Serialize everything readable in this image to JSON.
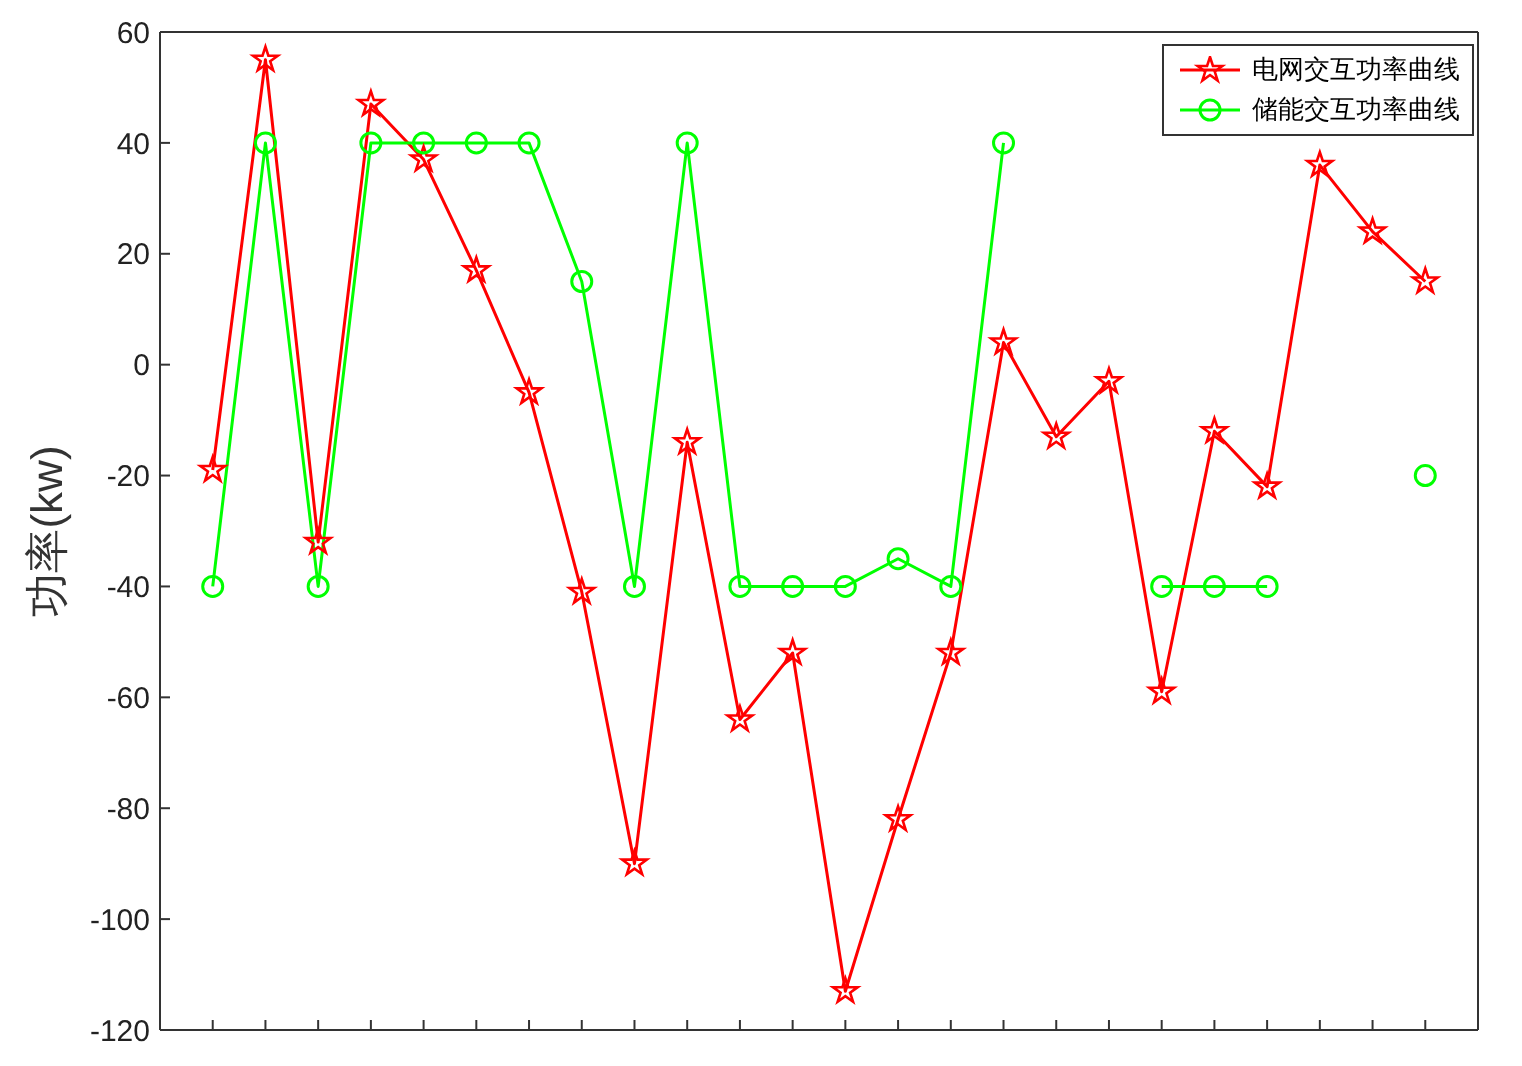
{
  "chart_data": {
    "type": "line",
    "ylabel": "功率(kw)",
    "categories": [
      null,
      null,
      null,
      null,
      null,
      null,
      null,
      null,
      null,
      null,
      null,
      null,
      null,
      null,
      null,
      null,
      null,
      null,
      null,
      null,
      null,
      null,
      null,
      null
    ],
    "series": [
      {
        "name": "电网交互功率曲线",
        "color": "#ff0000",
        "marker": "star",
        "values": [
          -19,
          55,
          -32,
          47,
          37,
          17,
          -5,
          -41,
          -90,
          -14,
          -64,
          -52,
          -113,
          -82,
          -52,
          4,
          -13,
          -3,
          -59,
          -12,
          -22,
          36,
          24,
          15
        ]
      },
      {
        "name": "储能交互功率曲线",
        "color": "#00ff00",
        "marker": "circle",
        "values": [
          -40,
          40,
          -40,
          40,
          40,
          40,
          40,
          15,
          -40,
          40,
          -40,
          -40,
          -40,
          -35,
          -40,
          40,
          null,
          null,
          -40,
          -40,
          -40,
          null,
          null,
          -20
        ]
      }
    ],
    "ylim": [
      -120,
      60
    ],
    "yticks": [
      -120,
      -100,
      -80,
      -60,
      -40,
      -20,
      0,
      20,
      40,
      60
    ],
    "legend": "top right",
    "line_style": "solid",
    "tick_labels": "y"
  }
}
